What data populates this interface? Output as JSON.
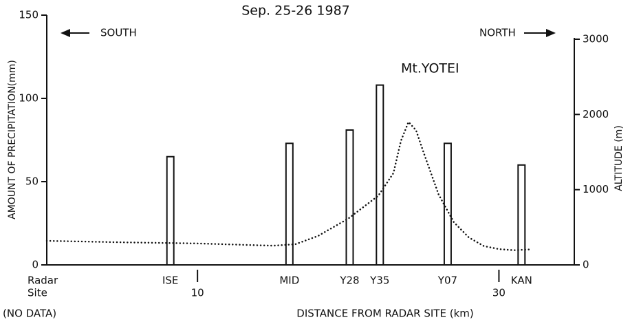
{
  "chart_data": {
    "type": "bar",
    "title": "Sep. 25-26 1987",
    "xlabel": "DISTANCE FROM RADAR SITE (km)",
    "ylabel": "AMOUNT OF PRECIPITATION(mm)",
    "y2label": "ALTITUDE (m)",
    "annotations": [
      "SOUTH",
      "NORTH",
      "Mt.YOTEI",
      "Radar",
      "Site",
      "(NO DATA)"
    ],
    "xlim": [
      0,
      35
    ],
    "xticks": [
      10,
      30
    ],
    "ylim": [
      0,
      150
    ],
    "yticks": [
      0,
      50,
      100,
      150
    ],
    "y2lim": [
      0,
      3000
    ],
    "y2ticks": [
      0,
      1000,
      2000,
      3000
    ],
    "categories": [
      "ISE",
      "MID",
      "Y28",
      "Y35",
      "Y07",
      "KAN"
    ],
    "series": [
      {
        "type": "bar",
        "color": "#111111",
        "x": [
          8.2,
          16.1,
          20.1,
          22.1,
          26.6,
          31.5
        ],
        "values": [
          65,
          73,
          81,
          108,
          73,
          60
        ]
      },
      {
        "type": "line",
        "axis": "y2",
        "color": "#111111",
        "x": [
          0,
          5,
          10,
          15,
          16.5,
          18,
          20,
          22,
          23,
          23.5,
          24,
          24.5,
          25,
          26,
          27,
          28,
          29,
          30,
          31,
          32
        ],
        "values": [
          320,
          300,
          285,
          255,
          275,
          385,
          615,
          920,
          1220,
          1650,
          1900,
          1790,
          1495,
          935,
          570,
          365,
          250,
          210,
          195,
          205
        ]
      }
    ]
  }
}
